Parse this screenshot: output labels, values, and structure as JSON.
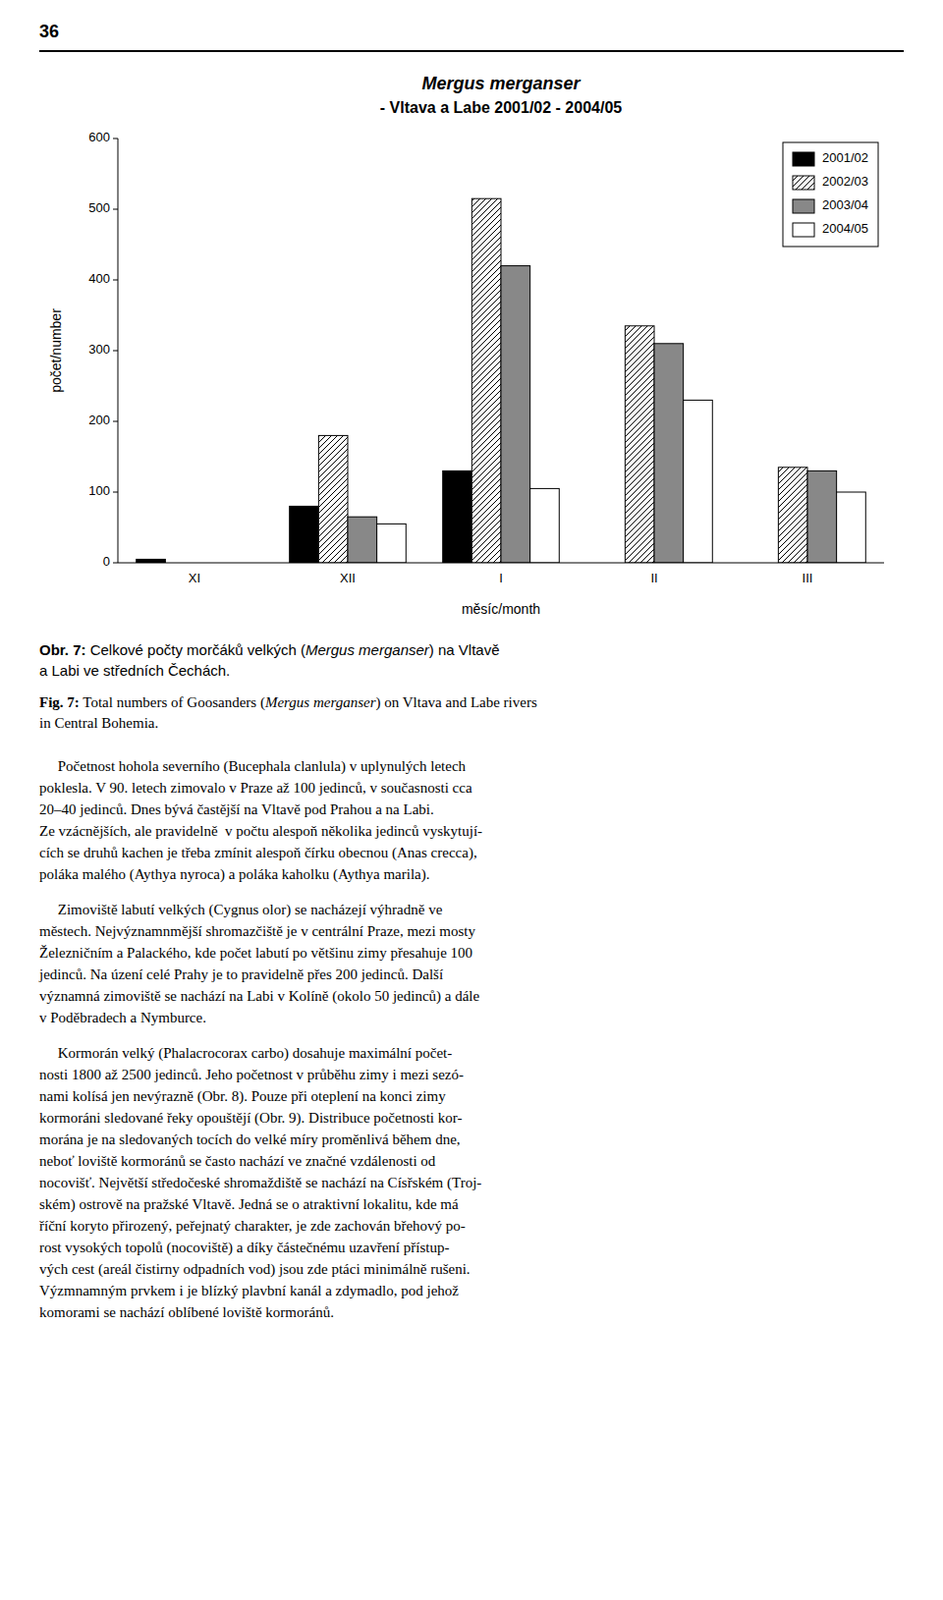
{
  "chart_data": {
    "type": "bar",
    "title": "Mergus merganser",
    "subtitle": "- Vltava a Labe 2001/02 - 2004/05",
    "xlabel": "měsíc/month",
    "ylabel": "počet/number",
    "categories": [
      "XI",
      "XII",
      "I",
      "II",
      "III"
    ],
    "series": [
      {
        "name": "2001/02",
        "color": "#000000",
        "values": [
          5,
          80,
          130,
          0,
          0
        ]
      },
      {
        "name": "2002/03",
        "color": "#ffffff",
        "values": [
          0,
          180,
          515,
          335,
          135
        ]
      },
      {
        "name": "2003/04",
        "color": "#888888",
        "values": [
          0,
          65,
          420,
          310,
          130
        ]
      },
      {
        "name": "2004/05",
        "color": "#ffffff",
        "values": [
          0,
          55,
          105,
          230,
          100
        ]
      }
    ],
    "ylim": [
      0,
      600
    ],
    "yticks": [
      0,
      100,
      200,
      300,
      400,
      500,
      600
    ],
    "grid": false,
    "legend": "upper right"
  },
  "page": {
    "number": "36",
    "captions": [
      {
        "label": "Obr. 7:",
        "lines": [
          [
            "Celkové počty morčáků velkých (",
            "Mergus merganser",
            ") na Vltavě"
          ],
          [
            "a Labi ve středních Čechách."
          ]
        ]
      },
      {
        "label": "Fig. 7:",
        "lines": [
          [
            "Total numbers of Goosanders (",
            "Mergus merganser",
            ") on Vltava and Labe rivers"
          ],
          [
            "in Central Bohemia."
          ]
        ]
      }
    ],
    "body": [
      [
        "     Početnost hohola severního (Bucephala clanlula) v uplynulých letech",
        "poklesla. V 90. letech zimovalo v Praze až 100 jedinců, v současnosti cca",
        "20–40 jedinců. Dnes bývá častější na Vltavě pod Prahou a na Labi.",
        "Ze vzácnějších, ale pravidelně  v počtu alespoň několika jedinců vyskytují-",
        "cích se druhů kachen je třeba zmínit alespoň čírku obecnou (Anas crecca),",
        "poláka malého (Aythya nyroca) a poláka kaholku (Aythya marila)."
      ],
      [
        "     Zimoviště labutí velkých (Cygnus olor) se nacházejí výhradně ve",
        "městech. Nejvýznamnmější shromazčiště je v centrální Praze, mezi mosty",
        "Železničním a Palackého, kde počet labutí po většinu zimy přesahuje 100",
        "jedinců. Na úzení celé Prahy je to pravidelně přes 200 jedinců. Další",
        "významná zimoviště se nachází na Labi v Kolíně (okolo 50 jedinců) a dále",
        "v Poděbradech a Nymburce."
      ],
      [
        "     Kormorán velký (Phalacrocorax carbo) dosahuje maximální počet-",
        "nosti 1800 až 2500 jedinců. Jeho početnost v průběhu zimy i mezi sezó-",
        "nami kolísá jen nevýrazně (Obr. 8). Pouze při oteplení na konci zimy",
        "kormoráni sledované řeky opouštějí (Obr. 9). Distribuce početnosti kor-",
        "morána je na sledovaných tocích do velké míry proměnlivá během dne,",
        "neboť loviště kormoránů se často nachází ve značné vzdálenosti od",
        "nocovišť. Největší středočeské shromaždiště se nachází na Císřském (Troj-",
        "ském) ostrově na pražské Vltavě. Jedná se o atraktivní lokalitu, kde má",
        "říční koryto přirozený, peřejnatý charakter, je zde zachován břehový po-",
        "rost vysokých topolů (nocoviště) a díky částečnému uzavření přístup-",
        "vých cest (areál čistirny odpadních vod) jsou zde ptáci minimálně rušeni.",
        "Výzmnamným prvkem i je blízký plavbní kanál a zdymadlo, pod jehož",
        "komorami se nachází oblíbené loviště kormoránů."
      ]
    ]
  }
}
